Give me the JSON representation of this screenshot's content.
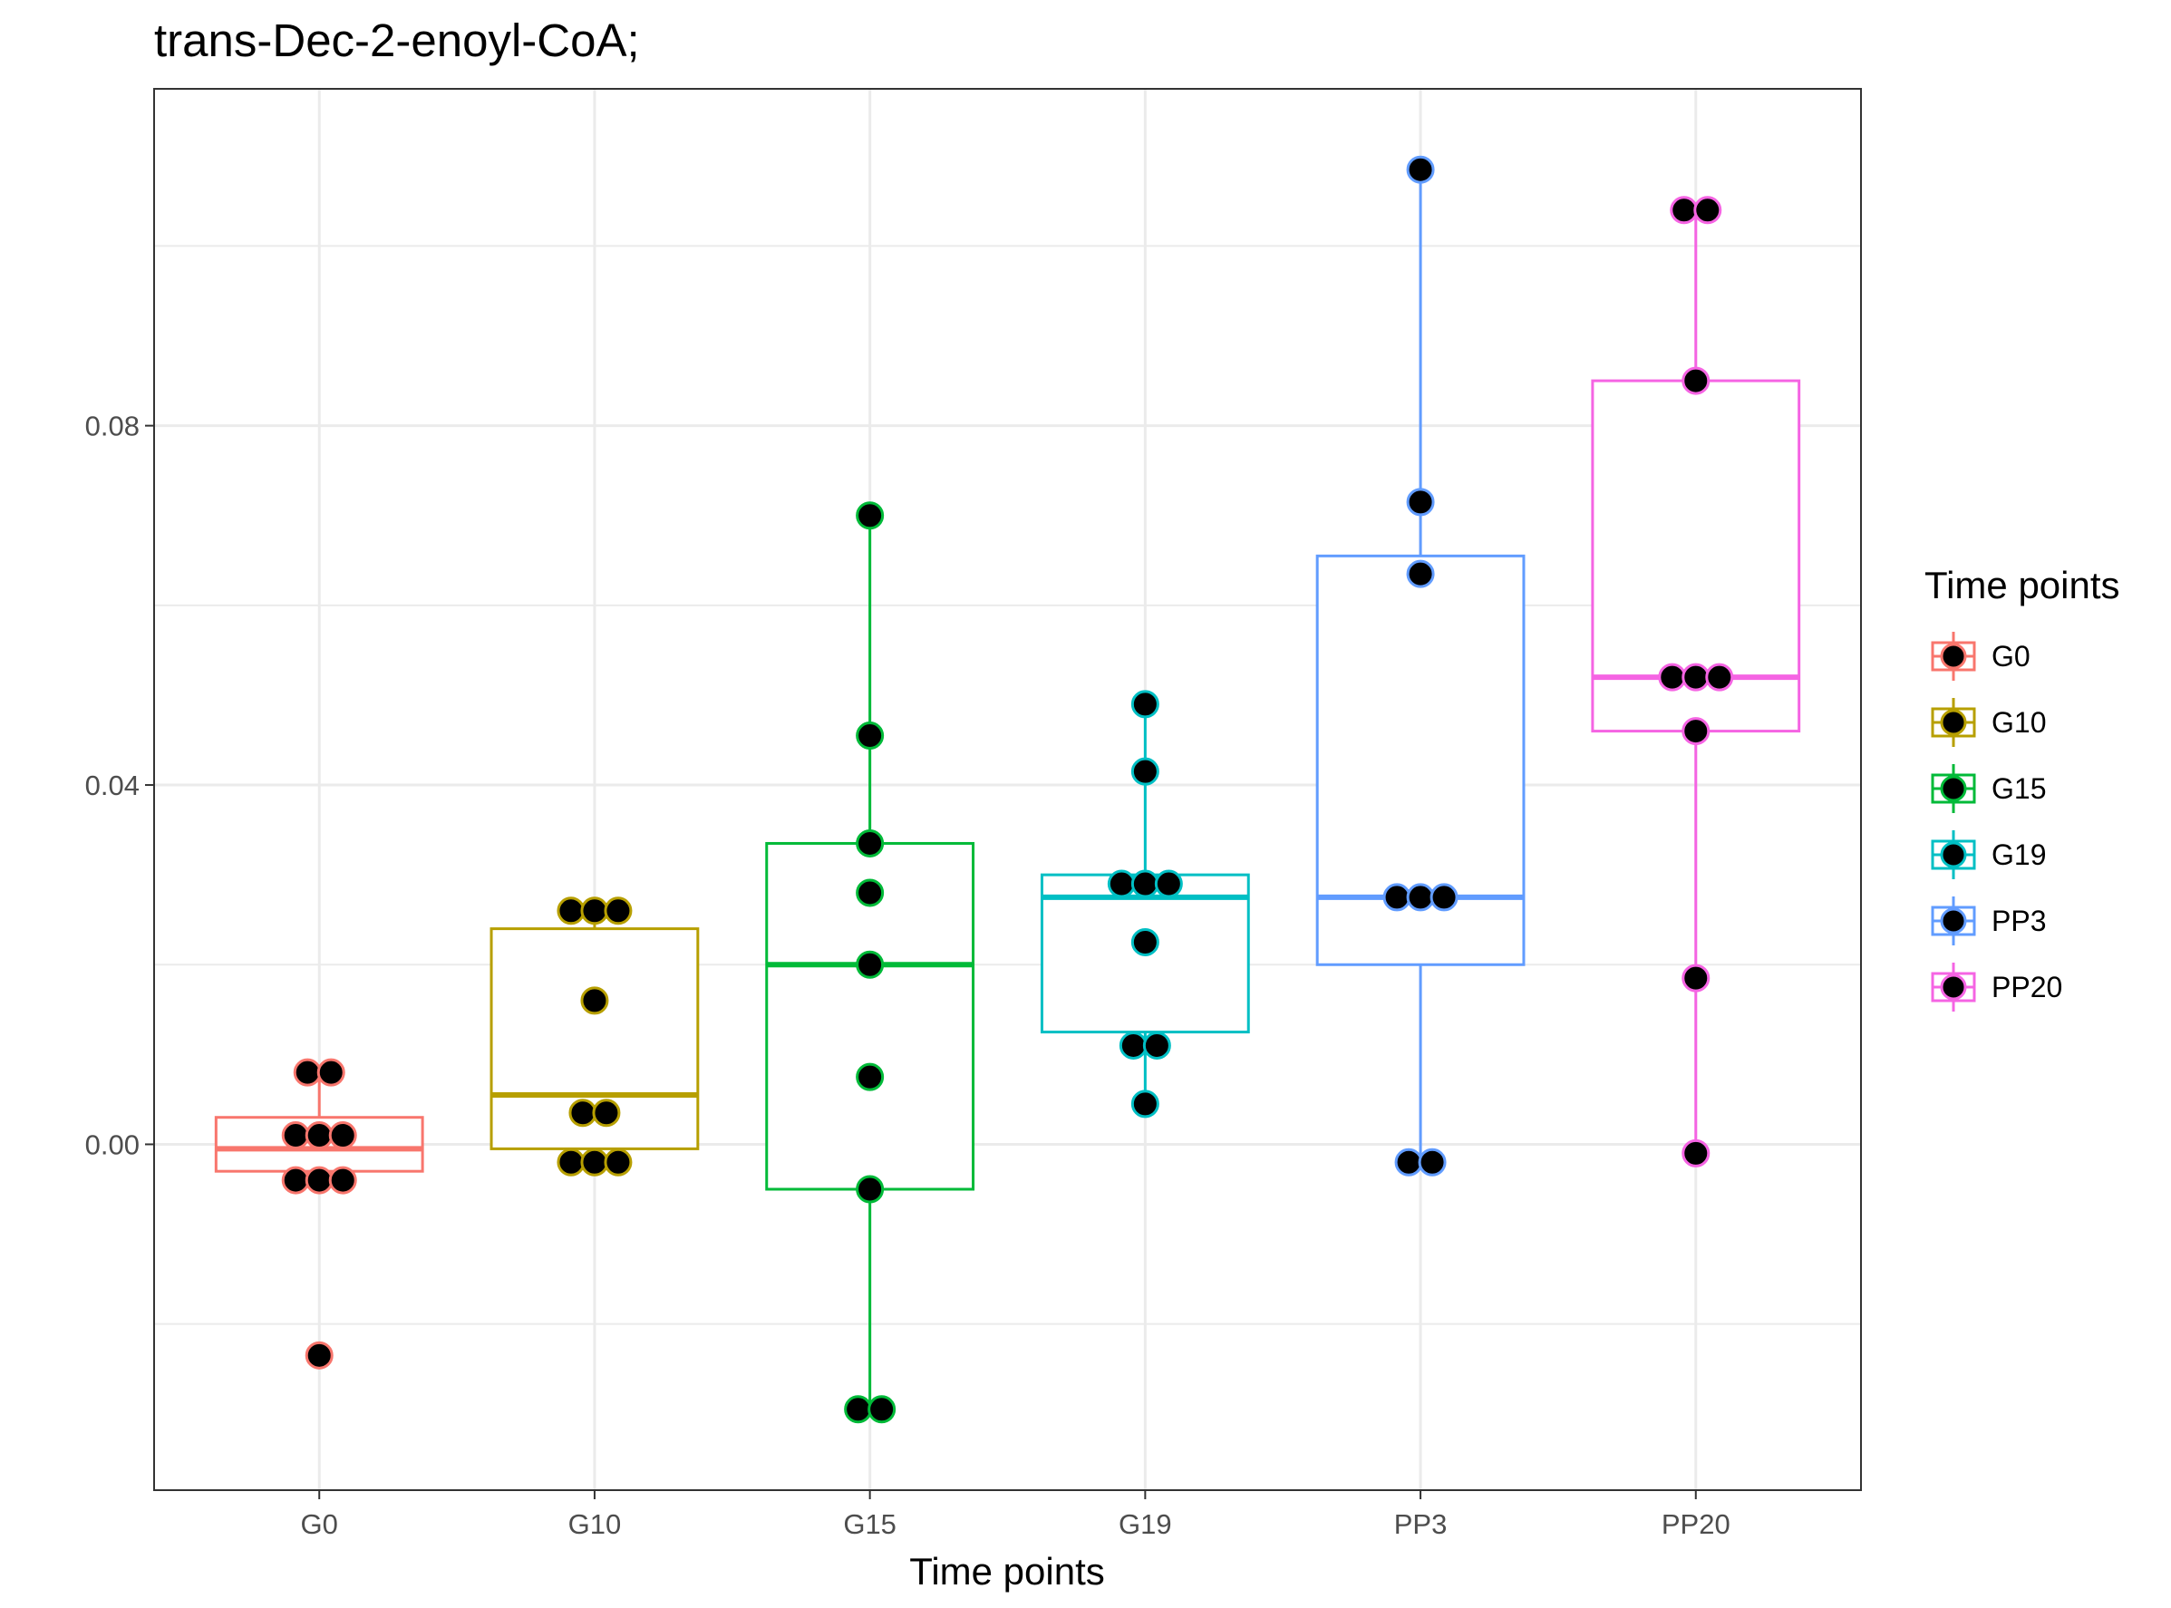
{
  "chart_data": {
    "type": "boxplot",
    "title": "trans-Dec-2-enoyl-CoA;",
    "xlabel": "Time points",
    "ylabel": "",
    "categories": [
      "G0",
      "G10",
      "G15",
      "G19",
      "PP3",
      "PP20"
    ],
    "y_ticks": [
      0.0,
      0.04,
      0.08
    ],
    "y_tick_labels": [
      "0.00",
      "0.04",
      "0.08"
    ],
    "ylim": [
      -0.0385,
      0.1175
    ],
    "grid": true,
    "legend": {
      "title": "Time points",
      "position": "right"
    },
    "series": [
      {
        "category": "G0",
        "color": "#F8766D",
        "box": {
          "lower_whisker": -0.0035,
          "q1": -0.003,
          "median": -0.0005,
          "q3": 0.003,
          "upper_whisker": 0.008
        },
        "points": [
          0.008,
          0.008,
          0.001,
          0.001,
          0.001,
          -0.004,
          -0.004,
          -0.004,
          -0.0235
        ]
      },
      {
        "category": "G10",
        "color": "#B79F00",
        "box": {
          "lower_whisker": -0.0025,
          "q1": -0.0005,
          "median": 0.0055,
          "q3": 0.024,
          "upper_whisker": 0.0275
        },
        "points": [
          0.026,
          0.026,
          0.026,
          0.016,
          0.0035,
          0.0035,
          -0.002,
          -0.002,
          -0.002
        ]
      },
      {
        "category": "G15",
        "color": "#00BA38",
        "box": {
          "lower_whisker": -0.0295,
          "q1": -0.005,
          "median": 0.02,
          "q3": 0.0335,
          "upper_whisker": 0.07
        },
        "points": [
          0.07,
          0.0455,
          0.0335,
          0.028,
          0.02,
          0.0075,
          -0.005,
          -0.0295,
          -0.0295
        ]
      },
      {
        "category": "G19",
        "color": "#00BFC4",
        "box": {
          "lower_whisker": 0.0045,
          "q1": 0.0125,
          "median": 0.0275,
          "q3": 0.03,
          "upper_whisker": 0.049
        },
        "points": [
          0.049,
          0.0415,
          0.029,
          0.029,
          0.029,
          0.0225,
          0.011,
          0.011,
          0.0045
        ]
      },
      {
        "category": "PP3",
        "color": "#619CFF",
        "box": {
          "lower_whisker": -0.002,
          "q1": 0.02,
          "median": 0.0275,
          "q3": 0.0655,
          "upper_whisker": 0.1085
        },
        "points": [
          0.1085,
          0.0715,
          0.0635,
          0.0275,
          0.0275,
          0.0275,
          -0.002,
          -0.002
        ]
      },
      {
        "category": "PP20",
        "color": "#F564E3",
        "box": {
          "lower_whisker": -0.001,
          "q1": 0.046,
          "median": 0.052,
          "q3": 0.085,
          "upper_whisker": 0.104
        },
        "points": [
          0.104,
          0.104,
          0.085,
          0.052,
          0.052,
          0.052,
          0.046,
          0.0185,
          -0.001
        ]
      }
    ]
  }
}
